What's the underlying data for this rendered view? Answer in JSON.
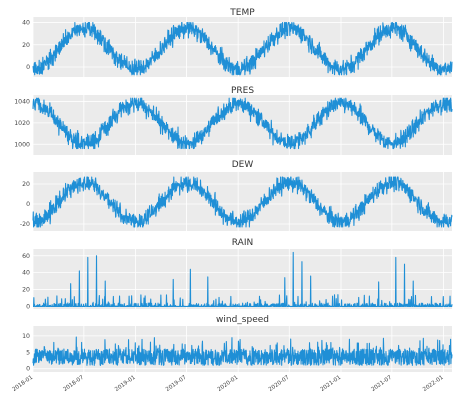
{
  "chart_data": [
    {
      "type": "line",
      "title": "TEMP",
      "ylim": [
        -9,
        45
      ],
      "yticks": [
        0,
        20,
        40
      ],
      "grid": true,
      "color": "#1f8fd6",
      "x_range": [
        "2018-01-01",
        "2022-01-31"
      ],
      "seasonal_profile": {
        "description_kind": "daily series with annual cycle",
        "min_value_approx": -7,
        "max_value_approx": 40,
        "peak_months": [
          "2018-07",
          "2019-07",
          "2020-07",
          "2021-07"
        ],
        "trough_months": [
          "2018-01",
          "2019-01",
          "2020-01",
          "2021-01",
          "2022-01"
        ]
      }
    },
    {
      "type": "line",
      "title": "PRES",
      "ylim": [
        990,
        1046
      ],
      "yticks": [
        1000,
        1020,
        1040
      ],
      "grid": true,
      "color": "#1f8fd6",
      "x_range": [
        "2018-01-01",
        "2022-01-31"
      ],
      "seasonal_profile": {
        "description_kind": "daily series with annual cycle (inverse of temperature)",
        "min_value_approx": 996,
        "max_value_approx": 1043,
        "peak_months": [
          "2018-01",
          "2019-01",
          "2020-01",
          "2021-01",
          "2022-01"
        ],
        "trough_months": [
          "2018-07",
          "2019-07",
          "2020-07",
          "2021-07"
        ]
      }
    },
    {
      "type": "line",
      "title": "DEW",
      "ylim": [
        -27,
        32
      ],
      "yticks": [
        -20,
        0,
        20
      ],
      "grid": true,
      "color": "#1f8fd6",
      "x_range": [
        "2018-01-01",
        "2022-01-31"
      ],
      "seasonal_profile": {
        "description_kind": "daily series with annual cycle",
        "min_value_approx": -23,
        "max_value_approx": 27,
        "peak_months": [
          "2018-07",
          "2019-07",
          "2020-07",
          "2021-07"
        ],
        "trough_months": [
          "2018-01",
          "2019-01",
          "2020-01",
          "2021-01",
          "2022-01"
        ]
      }
    },
    {
      "type": "line",
      "title": "RAIN",
      "ylim": [
        -3,
        68
      ],
      "yticks": [
        0,
        20,
        40,
        60
      ],
      "grid": true,
      "color": "#1f8fd6",
      "x_range": [
        "2018-01-01",
        "2022-01-31"
      ],
      "notable_spikes": [
        {
          "x": "2018-05",
          "y": 27
        },
        {
          "x": "2018-06",
          "y": 42
        },
        {
          "x": "2018-07",
          "y": 58
        },
        {
          "x": "2018-08",
          "y": 60
        },
        {
          "x": "2018-09",
          "y": 30
        },
        {
          "x": "2019-05",
          "y": 32
        },
        {
          "x": "2019-07",
          "y": 44
        },
        {
          "x": "2019-09",
          "y": 35
        },
        {
          "x": "2020-06",
          "y": 34
        },
        {
          "x": "2020-07",
          "y": 64
        },
        {
          "x": "2020-08",
          "y": 53
        },
        {
          "x": "2020-09",
          "y": 36
        },
        {
          "x": "2021-05",
          "y": 29
        },
        {
          "x": "2021-07",
          "y": 58
        },
        {
          "x": "2021-08",
          "y": 50
        },
        {
          "x": "2021-09",
          "y": 30
        }
      ]
    },
    {
      "type": "line",
      "title": "wind_speed",
      "ylim": [
        -1,
        13
      ],
      "yticks": [
        0,
        5,
        10
      ],
      "grid": true,
      "color": "#1f8fd6",
      "x_range": [
        "2018-01-01",
        "2022-01-31"
      ],
      "typical_range": [
        1,
        6
      ],
      "max_value_approx": 12
    }
  ],
  "shared_x_axis": {
    "tick_labels": [
      "2018-01",
      "2018-07",
      "2019-01",
      "2019-07",
      "2020-01",
      "2020-07",
      "2021-01",
      "2021-07",
      "2022-01"
    ]
  }
}
